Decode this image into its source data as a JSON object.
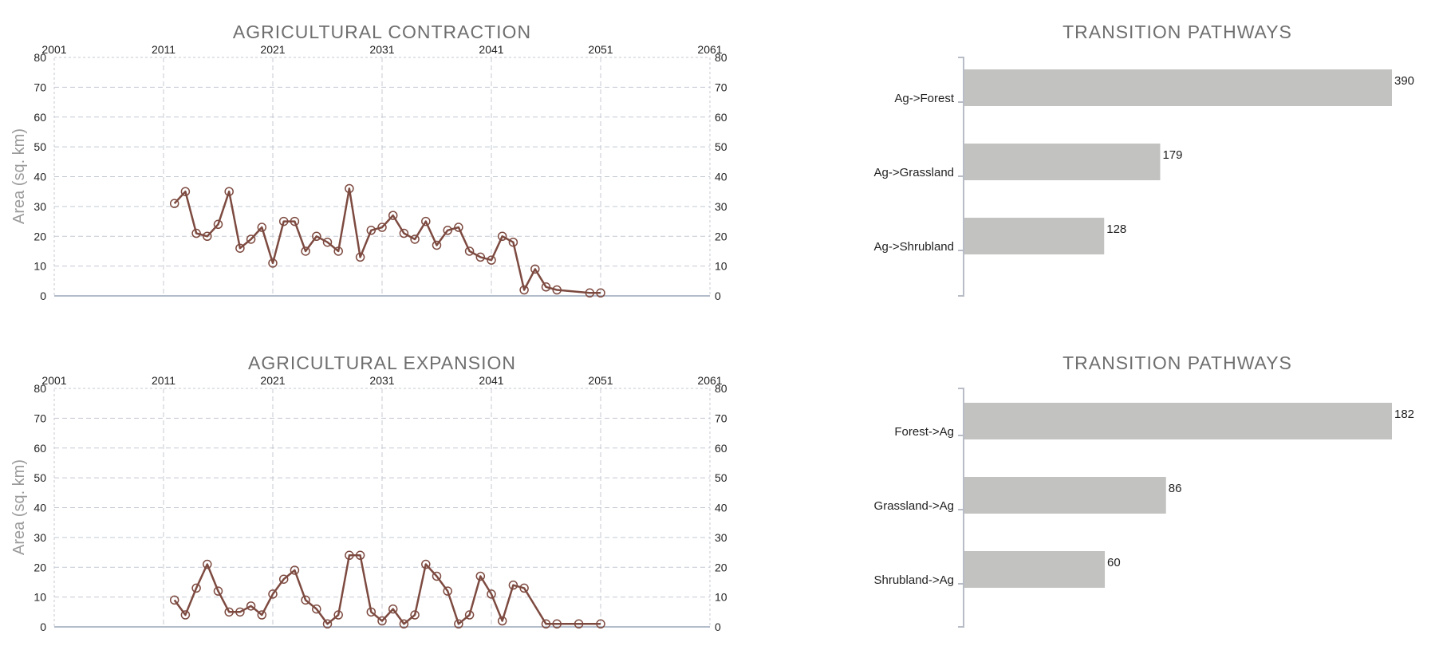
{
  "chart_data": [
    {
      "type": "line",
      "title": "AGRICULTURAL CONTRACTION",
      "ylabel": "Area (sq. km)",
      "xlabel": "",
      "xlim": [
        2001,
        2061
      ],
      "ylim": [
        0,
        80
      ],
      "xticks": [
        "2001",
        "2011",
        "2021",
        "2031",
        "2041",
        "2051",
        "2061"
      ],
      "yticks": [
        "0",
        "10",
        "20",
        "30",
        "40",
        "50",
        "60",
        "70",
        "80"
      ],
      "grid": true,
      "color": "#7d4a40",
      "x": [
        2012,
        2013,
        2014,
        2015,
        2016,
        2017,
        2018,
        2019,
        2020,
        2021,
        2022,
        2023,
        2024,
        2025,
        2026,
        2027,
        2028,
        2029,
        2030,
        2031,
        2032,
        2033,
        2034,
        2035,
        2036,
        2037,
        2038,
        2039,
        2040,
        2041,
        2042,
        2043,
        2044,
        2045,
        2046,
        2047,
        2050,
        2051
      ],
      "y": [
        31,
        35,
        21,
        20,
        24,
        35,
        16,
        19,
        23,
        11,
        25,
        25,
        15,
        20,
        18,
        15,
        36,
        13,
        22,
        23,
        27,
        21,
        19,
        25,
        17,
        22,
        23,
        15,
        13,
        12,
        20,
        18,
        2,
        9,
        3,
        2,
        1,
        1
      ]
    },
    {
      "type": "line",
      "title": "AGRICULTURAL EXPANSION",
      "ylabel": "Area (sq. km)",
      "xlabel": "",
      "xlim": [
        2001,
        2061
      ],
      "ylim": [
        0,
        80
      ],
      "xticks": [
        "2001",
        "2011",
        "2021",
        "2031",
        "2041",
        "2051",
        "2061"
      ],
      "yticks": [
        "0",
        "10",
        "20",
        "30",
        "40",
        "50",
        "60",
        "70",
        "80"
      ],
      "grid": true,
      "color": "#7d4a40",
      "x": [
        2012,
        2013,
        2014,
        2015,
        2016,
        2017,
        2018,
        2019,
        2020,
        2021,
        2022,
        2023,
        2024,
        2025,
        2026,
        2027,
        2028,
        2029,
        2030,
        2031,
        2032,
        2033,
        2034,
        2035,
        2036,
        2037,
        2038,
        2039,
        2040,
        2041,
        2042,
        2043,
        2044,
        2046,
        2047,
        2049,
        2051
      ],
      "y": [
        9,
        4,
        13,
        21,
        12,
        5,
        5,
        7,
        4,
        11,
        16,
        19,
        9,
        6,
        1,
        4,
        24,
        24,
        5,
        2,
        6,
        1,
        4,
        21,
        17,
        12,
        1,
        4,
        17,
        11,
        2,
        14,
        13,
        1,
        1,
        1,
        1
      ]
    },
    {
      "type": "bar",
      "orientation": "horizontal",
      "title": "TRANSITION PATHWAYS",
      "categories": [
        "Ag->Forest",
        "Ag->Grassland",
        "Ag->Shrubland"
      ],
      "values": [
        390,
        179,
        128
      ],
      "xlim": [
        0,
        390
      ],
      "color": "#c2c2c0"
    },
    {
      "type": "bar",
      "orientation": "horizontal",
      "title": "TRANSITION PATHWAYS",
      "categories": [
        "Forest->Ag",
        "Grassland->Ag",
        "Shrubland->Ag"
      ],
      "values": [
        182,
        86,
        60
      ],
      "xlim": [
        0,
        182
      ],
      "color": "#c2c2c0"
    }
  ]
}
